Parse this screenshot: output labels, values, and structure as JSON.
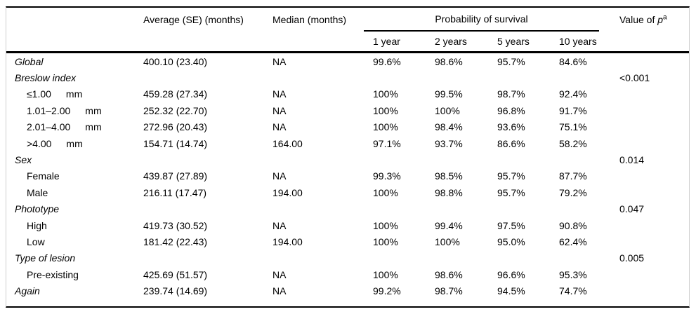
{
  "table": {
    "columns": {
      "average": "Average (SE) (months)",
      "median": "Median (months)",
      "survival_group": "Probability of survival",
      "years": [
        "1 year",
        "2 years",
        "5 years",
        "10 years"
      ],
      "p_label_prefix": "Value of ",
      "p_symbol": "p",
      "p_superscript": "a"
    },
    "rows": [
      {
        "label": "Global",
        "type": "category",
        "avg": "400.10 (23.40)",
        "median": "NA",
        "survival": [
          "99.6%",
          "98.6%",
          "95.7%",
          "84.6%"
        ],
        "p": ""
      },
      {
        "label": "Breslow index",
        "type": "category",
        "avg": "",
        "median": "",
        "survival": [
          "",
          "",
          "",
          ""
        ],
        "p": "<0.001"
      },
      {
        "label": "≤1.00  mm",
        "type": "sub",
        "avg": "459.28 (27.34)",
        "median": "NA",
        "survival": [
          "100%",
          "99.5%",
          "98.7%",
          "92.4%"
        ],
        "p": ""
      },
      {
        "label": "1.01–2.00  mm",
        "type": "sub",
        "avg": "252.32 (22.70)",
        "median": "NA",
        "survival": [
          "100%",
          "100%",
          "96.8%",
          "91.7%"
        ],
        "p": ""
      },
      {
        "label": "2.01–4.00  mm",
        "type": "sub",
        "avg": "272.96 (20.43)",
        "median": "NA",
        "survival": [
          "100%",
          "98.4%",
          "93.6%",
          "75.1%"
        ],
        "p": ""
      },
      {
        "label": ">4.00  mm",
        "type": "sub",
        "avg": "154.71 (14.74)",
        "median": "164.00",
        "survival": [
          "97.1%",
          "93.7%",
          "86.6%",
          "58.2%"
        ],
        "p": ""
      },
      {
        "label": "Sex",
        "type": "category",
        "avg": "",
        "median": "",
        "survival": [
          "",
          "",
          "",
          ""
        ],
        "p": "0.014"
      },
      {
        "label": "Female",
        "type": "sub",
        "avg": "439.87 (27.89)",
        "median": "NA",
        "survival": [
          "99.3%",
          "98.5%",
          "95.7%",
          "87.7%"
        ],
        "p": ""
      },
      {
        "label": "Male",
        "type": "sub",
        "avg": "216.11 (17.47)",
        "median": "194.00",
        "survival": [
          "100%",
          "98.8%",
          "95.7%",
          "79.2%"
        ],
        "p": ""
      },
      {
        "label": "Phototype",
        "type": "category",
        "avg": "",
        "median": "",
        "survival": [
          "",
          "",
          "",
          ""
        ],
        "p": "0.047"
      },
      {
        "label": "High",
        "type": "sub",
        "avg": "419.73 (30.52)",
        "median": "NA",
        "survival": [
          "100%",
          "99.4%",
          "97.5%",
          "90.8%"
        ],
        "p": ""
      },
      {
        "label": "Low",
        "type": "sub",
        "avg": "181.42 (22.43)",
        "median": "194.00",
        "survival": [
          "100%",
          "100%",
          "95.0%",
          "62.4%"
        ],
        "p": ""
      },
      {
        "label": "Type of lesion",
        "type": "category",
        "avg": "",
        "median": "",
        "survival": [
          "",
          "",
          "",
          ""
        ],
        "p": "0.005"
      },
      {
        "label": "Pre-existing",
        "type": "sub",
        "avg": "425.69 (51.57)",
        "median": "NA",
        "survival": [
          "100%",
          "98.6%",
          "96.6%",
          "95.3%"
        ],
        "p": ""
      },
      {
        "label": "Again",
        "type": "category",
        "avg": "239.74 (14.69)",
        "median": "NA",
        "survival": [
          "99.2%",
          "98.7%",
          "94.5%",
          "74.7%"
        ],
        "p": ""
      }
    ]
  }
}
